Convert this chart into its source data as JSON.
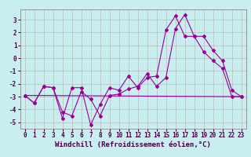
{
  "title": "",
  "xlabel": "Windchill (Refroidissement éolien,°C)",
  "ylabel": "",
  "xlim": [
    -0.5,
    23.5
  ],
  "ylim": [
    -5.5,
    3.8
  ],
  "xticks": [
    0,
    1,
    2,
    3,
    4,
    5,
    6,
    7,
    8,
    9,
    10,
    11,
    12,
    13,
    14,
    15,
    16,
    17,
    18,
    19,
    20,
    21,
    22,
    23
  ],
  "yticks": [
    -5,
    -4,
    -3,
    -2,
    -1,
    0,
    1,
    2,
    3
  ],
  "bg_color": "#c8eef0",
  "grid_color": "#b0b0b0",
  "line_color": "#990099",
  "line1_x": [
    0,
    1,
    2,
    3,
    4,
    5,
    6,
    7,
    8,
    9,
    10,
    11,
    12,
    13,
    14,
    15,
    16,
    17,
    18,
    19,
    20,
    21,
    22,
    23
  ],
  "line1_y": [
    -2.9,
    -3.5,
    -2.2,
    -2.3,
    -4.7,
    -2.3,
    -2.3,
    -5.2,
    -3.6,
    -2.3,
    -2.5,
    -1.4,
    -2.3,
    -1.5,
    -1.4,
    2.2,
    3.3,
    1.7,
    1.7,
    0.5,
    -0.2,
    -0.8,
    -3.0,
    -3.0
  ],
  "line2_x": [
    0,
    1,
    2,
    3,
    4,
    5,
    6,
    7,
    8,
    9,
    10,
    11,
    12,
    13,
    14,
    15,
    16,
    17,
    18,
    19,
    20,
    21,
    22,
    23
  ],
  "line2_y": [
    -2.9,
    -3.5,
    -2.2,
    -2.3,
    -4.2,
    -4.5,
    -2.6,
    -3.2,
    -4.5,
    -2.9,
    -2.8,
    -2.4,
    -2.2,
    -1.2,
    -2.2,
    -1.5,
    2.3,
    3.4,
    1.7,
    1.7,
    0.6,
    -0.2,
    -2.5,
    -3.0
  ],
  "line3_x": [
    0,
    23
  ],
  "line3_y": [
    -2.9,
    -3.0
  ],
  "marker": "D",
  "markersize": 2.0,
  "linewidth": 0.8,
  "tick_fontsize": 5.5,
  "xlabel_fontsize": 6.5
}
